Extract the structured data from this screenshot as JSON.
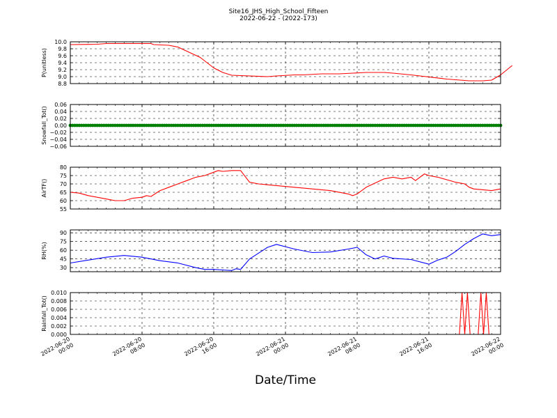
{
  "title": "Site16_JHS_High_School_Fifteen",
  "subtitle": "2022-06-22 - (2022-173)",
  "xlabel": "Date/Time",
  "x_tick_labels": [
    [
      "2022-06-20",
      "00:00"
    ],
    [
      "2022-06-20",
      "08:00"
    ],
    [
      "2022-06-20",
      "16:00"
    ],
    [
      "2022-06-21",
      "00:00"
    ],
    [
      "2022-06-21",
      "08:00"
    ],
    [
      "2022-06-21",
      "16:00"
    ],
    [
      "2022-06-22",
      "00:00"
    ]
  ],
  "chart_data": [
    {
      "type": "line",
      "ylabel": "P(unitless)",
      "ylim": [
        8.8,
        10.0
      ],
      "yticks": [
        "8.8",
        "9.0",
        "9.2",
        "9.4",
        "9.6",
        "9.8",
        "10.0"
      ],
      "grid": true,
      "color": "#ff0000",
      "x_hours": [
        0,
        3,
        4,
        9,
        9.3,
        11,
        12,
        14.5,
        16,
        17,
        18,
        22,
        23,
        25,
        26,
        28,
        30,
        33,
        35,
        36,
        38,
        42,
        44,
        44.5,
        46,
        47,
        48,
        49.3
      ],
      "y": [
        9.92,
        9.93,
        9.95,
        9.95,
        9.92,
        9.9,
        9.85,
        9.55,
        9.25,
        9.12,
        9.04,
        9.0,
        9.02,
        9.05,
        9.05,
        9.08,
        9.08,
        9.12,
        9.12,
        9.1,
        9.05,
        8.93,
        8.89,
        8.88,
        8.88,
        8.9,
        9.05,
        9.32
      ]
    },
    {
      "type": "scatter",
      "ylabel": "Snowfall_Tot()",
      "ylim": [
        -0.06,
        0.06
      ],
      "yticks": [
        "−0.06",
        "−0.04",
        "−0.02",
        "0.00",
        "0.02",
        "0.04",
        "0.06"
      ],
      "grid": true,
      "color": "#008000",
      "x_range_hours": [
        0,
        48
      ],
      "interval_minutes": 15,
      "constant_value": 0.0
    },
    {
      "type": "line",
      "ylabel": "AirTF()",
      "ylim": [
        55,
        80
      ],
      "yticks": [
        "55",
        "60",
        "65",
        "70",
        "75",
        "80"
      ],
      "grid": true,
      "color": "#ff0000",
      "x_hours": [
        0,
        1,
        2,
        4,
        5,
        6,
        7,
        8,
        8.5,
        9,
        10,
        11,
        12,
        13,
        14,
        15,
        16,
        16.5,
        17,
        18,
        19,
        20,
        21,
        23,
        25,
        27,
        29,
        31,
        31.5,
        32,
        33,
        35,
        36,
        37,
        38,
        38.5,
        39,
        39.5,
        40,
        41,
        43,
        44,
        44.5,
        45,
        47,
        48
      ],
      "y": [
        65,
        64.5,
        63,
        61,
        60,
        60,
        61.5,
        62,
        63,
        62.5,
        66,
        68,
        70,
        72,
        74,
        75,
        77,
        78,
        77.5,
        78,
        78,
        71,
        70,
        69,
        68,
        67,
        66,
        64,
        63,
        64,
        68,
        73,
        74,
        73,
        74,
        72,
        74,
        76,
        75,
        74,
        71,
        70,
        68,
        67,
        66,
        67
      ]
    },
    {
      "type": "line",
      "ylabel": "RH(%)",
      "ylim": [
        23,
        95
      ],
      "yticks": [
        "30",
        "45",
        "60",
        "75",
        "90"
      ],
      "grid": true,
      "color": "#0000ff",
      "x_hours": [
        0,
        2,
        4,
        6,
        8,
        10,
        12,
        14,
        15,
        16,
        17,
        18,
        18.5,
        19,
        20,
        21,
        22,
        23,
        25,
        27,
        29,
        31,
        32,
        33,
        34,
        35,
        36,
        38,
        40,
        41,
        42,
        43,
        44,
        45,
        46,
        47,
        48
      ],
      "y": [
        38,
        43,
        48,
        51,
        48,
        42,
        38,
        30,
        27,
        27,
        26,
        25,
        28,
        27,
        45,
        55,
        65,
        70,
        62,
        56,
        57,
        62,
        65,
        52,
        45,
        50,
        46,
        44,
        36,
        43,
        48,
        58,
        70,
        80,
        88,
        85,
        87
      ]
    },
    {
      "type": "line",
      "ylabel": "Rainfall_Tot()",
      "ylim": [
        0.0,
        0.01
      ],
      "yticks": [
        "0.000",
        "0.002",
        "0.004",
        "0.006",
        "0.008",
        "0.010"
      ],
      "grid": true,
      "color": "#ff0000",
      "x_hours": [
        0,
        43.4,
        43.7,
        44.0,
        44.3,
        44.6,
        44.9,
        45.2,
        45.5,
        45.8,
        46.1,
        46.4,
        46.7,
        48
      ],
      "y": [
        0,
        0,
        0.01,
        0,
        0.01,
        0,
        0,
        0,
        0,
        0.01,
        0,
        0.01,
        0,
        0
      ]
    }
  ]
}
